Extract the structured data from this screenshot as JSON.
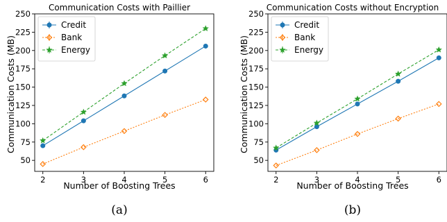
{
  "colors": {
    "Credit": "#1f77b4",
    "Bank": "#ff7f0e",
    "Energy": "#2ca02c"
  },
  "chart_data": [
    {
      "type": "line",
      "title": "Communication Costs with Paillier",
      "xlabel": "Number of Boosting Trees",
      "ylabel": "Communication Costs (MB)",
      "caption": "(a)",
      "x": [
        2,
        3,
        4,
        5,
        6
      ],
      "xlim": [
        1.8,
        6.2
      ],
      "ylim": [
        35,
        250
      ],
      "xticks": [
        2,
        3,
        4,
        5,
        6
      ],
      "yticks": [
        50,
        75,
        100,
        125,
        150,
        175,
        200,
        225,
        250
      ],
      "grid": false,
      "legend": "top-left",
      "series": [
        {
          "name": "Credit",
          "values": [
            70,
            104,
            138,
            172,
            206
          ],
          "marker": "circle",
          "line": "solid"
        },
        {
          "name": "Bank",
          "values": [
            45,
            68,
            90,
            112,
            133
          ],
          "marker": "diamond",
          "line": "dotted"
        },
        {
          "name": "Energy",
          "values": [
            77,
            116,
            155,
            193,
            230
          ],
          "marker": "star",
          "line": "dashed"
        }
      ]
    },
    {
      "type": "line",
      "title": "Communication Costs without Encryption",
      "xlabel": "Number of Boosting Trees",
      "ylabel": "Communication Costs (MB)",
      "caption": "(b)",
      "x": [
        2,
        3,
        4,
        5,
        6
      ],
      "xlim": [
        1.8,
        6.2
      ],
      "ylim": [
        35,
        250
      ],
      "xticks": [
        2,
        3,
        4,
        5,
        6
      ],
      "yticks": [
        50,
        75,
        100,
        125,
        150,
        175,
        200,
        225,
        250
      ],
      "grid": false,
      "legend": "top-left",
      "series": [
        {
          "name": "Credit",
          "values": [
            64,
            96,
            127,
            158,
            190
          ],
          "marker": "circle",
          "line": "solid"
        },
        {
          "name": "Bank",
          "values": [
            43,
            64,
            86,
            107,
            127
          ],
          "marker": "diamond",
          "line": "dotted"
        },
        {
          "name": "Energy",
          "values": [
            67,
            101,
            134,
            168,
            201
          ],
          "marker": "star",
          "line": "dashed"
        }
      ]
    }
  ]
}
